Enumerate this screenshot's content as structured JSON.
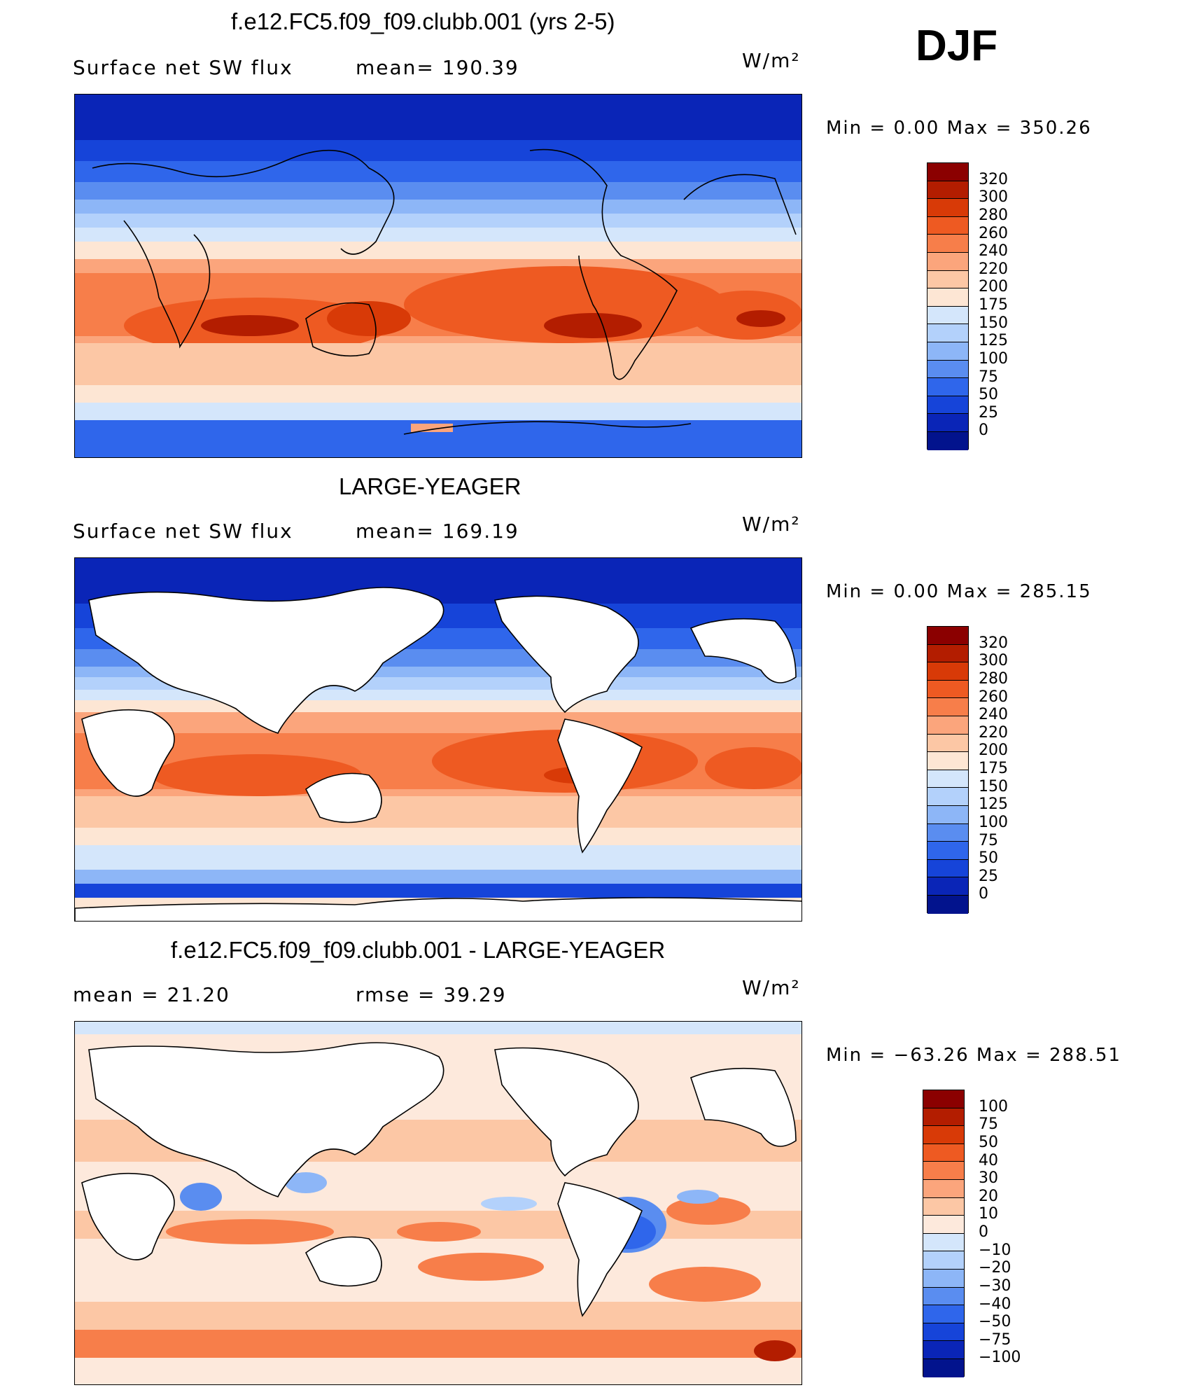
{
  "season": "DJF",
  "panels": [
    {
      "title": "f.e12.FC5.f09_f09.clubb.001 (yrs 2-5)",
      "left_label": "Surface net SW flux",
      "mid_label": "mean= 190.39",
      "units": "W/m²",
      "minmax": "Min =     0.00  Max  =  350.26",
      "colorbar": {
        "labels": [
          "320",
          "300",
          "280",
          "260",
          "240",
          "220",
          "200",
          "175",
          "150",
          "125",
          "100",
          "75",
          "50",
          "25",
          "0"
        ],
        "colors": [
          "#8b0000",
          "#b31d00",
          "#d83a07",
          "#ee5a22",
          "#f77e4a",
          "#fba57c",
          "#fcc7a5",
          "#fde6d4",
          "#d4e6fb",
          "#b3d1fb",
          "#8db6f7",
          "#5a8df0",
          "#2f66eb",
          "#1644d9",
          "#0a25b7",
          "#02138d"
        ]
      }
    },
    {
      "title": "LARGE-YEAGER",
      "left_label": "Surface net SW flux",
      "mid_label": "mean= 169.19",
      "units": "W/m²",
      "minmax": "Min =     0.00  Max  =  285.15",
      "colorbar": {
        "labels": [
          "320",
          "300",
          "280",
          "260",
          "240",
          "220",
          "200",
          "175",
          "150",
          "125",
          "100",
          "75",
          "50",
          "25",
          "0"
        ],
        "colors": [
          "#8b0000",
          "#b31d00",
          "#d83a07",
          "#ee5a22",
          "#f77e4a",
          "#fba57c",
          "#fcc7a5",
          "#fde6d4",
          "#d4e6fb",
          "#b3d1fb",
          "#8db6f7",
          "#5a8df0",
          "#2f66eb",
          "#1644d9",
          "#0a25b7",
          "#02138d"
        ]
      }
    },
    {
      "title": "f.e12.FC5.f09_f09.clubb.001 - LARGE-YEAGER",
      "left_label": "mean =   21.20",
      "mid_label": "rmse =    39.29",
      "units": "W/m²",
      "minmax": "Min = −63.26  Max  =  288.51",
      "colorbar": {
        "labels": [
          "100",
          "75",
          "50",
          "40",
          "30",
          "20",
          "10",
          "0",
          "−10",
          "−20",
          "−30",
          "−40",
          "−50",
          "−75",
          "−100"
        ],
        "colors": [
          "#8b0000",
          "#b31d00",
          "#d83a07",
          "#ee5a22",
          "#f77e4a",
          "#fba57c",
          "#fcc7a5",
          "#fde9dc",
          "#d4e6fb",
          "#b3d1fb",
          "#8db6f7",
          "#5a8df0",
          "#2f66eb",
          "#1644d9",
          "#0a25b7",
          "#02138d"
        ]
      }
    }
  ]
}
